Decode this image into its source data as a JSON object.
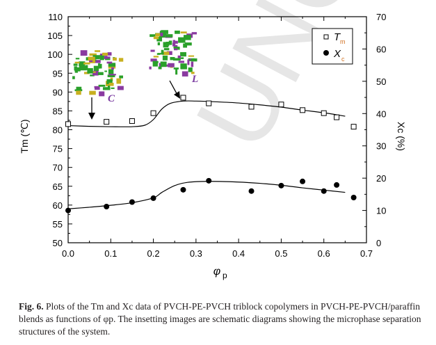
{
  "chart_data": {
    "type": "scatter",
    "xlabel": "φp",
    "ylabel_left": "Tm (℃)",
    "ylabel_right": "Xc (%)",
    "xlim": [
      0.0,
      0.7
    ],
    "ylim_left": [
      50,
      110
    ],
    "ylim_right": [
      0,
      70
    ],
    "xticks": [
      "0.0",
      "0.1",
      "0.2",
      "0.3",
      "0.4",
      "0.5",
      "0.6",
      "0.7"
    ],
    "yticks_left": [
      "50",
      "55",
      "60",
      "65",
      "70",
      "75",
      "80",
      "85",
      "90",
      "95",
      "100",
      "105",
      "110"
    ],
    "yticks_right": [
      "0",
      "10",
      "20",
      "30",
      "40",
      "50",
      "60",
      "70"
    ],
    "grid": false,
    "legend_placement": "top-right",
    "series": [
      {
        "name": "Tm",
        "axis": "left",
        "marker": "open-square",
        "x": [
          0.0,
          0.09,
          0.15,
          0.2,
          0.27,
          0.33,
          0.43,
          0.5,
          0.55,
          0.6,
          0.63,
          0.67
        ],
        "y": [
          81.5,
          82.1,
          82.3,
          84.4,
          88.5,
          87.0,
          86.1,
          86.7,
          85.2,
          84.4,
          83.3,
          80.8
        ],
        "fit_x": [
          0.0,
          0.05,
          0.1,
          0.15,
          0.18,
          0.2,
          0.22,
          0.24,
          0.27,
          0.3,
          0.35,
          0.4,
          0.45,
          0.5,
          0.55,
          0.6,
          0.65
        ],
        "fit_y": [
          81.1,
          80.9,
          80.8,
          80.8,
          81.2,
          82.7,
          85.5,
          87.0,
          87.6,
          87.6,
          87.4,
          87.1,
          86.6,
          86.0,
          85.2,
          84.5,
          83.6
        ]
      },
      {
        "name": "Xc",
        "axis": "right",
        "marker": "filled-circle",
        "x": [
          0.0,
          0.09,
          0.15,
          0.2,
          0.27,
          0.33,
          0.43,
          0.5,
          0.55,
          0.6,
          0.63,
          0.67
        ],
        "y": [
          10.0,
          11.2,
          12.6,
          13.8,
          16.4,
          19.2,
          16.0,
          17.7,
          19.0,
          16.0,
          17.9,
          14.0
        ],
        "fit_x": [
          0.0,
          0.05,
          0.1,
          0.15,
          0.2,
          0.22,
          0.25,
          0.28,
          0.33,
          0.4,
          0.45,
          0.5,
          0.55,
          0.6,
          0.65
        ],
        "fit_y": [
          10.5,
          11.0,
          11.6,
          12.4,
          13.9,
          15.6,
          17.7,
          18.7,
          19.0,
          18.8,
          18.4,
          17.8,
          17.0,
          16.3,
          15.6
        ]
      }
    ],
    "annotations": [
      "C",
      "L"
    ],
    "watermark": "UNCO"
  },
  "legend": {
    "tm_main": "T",
    "tm_sub": "m",
    "xc_main": "X",
    "xc_sub": "c"
  },
  "caption": {
    "label": "Fig. 6.",
    "text": "Plots of the Tm and Xc data of PVCH-PE-PVCH triblock copolymers in PVCH-PE-PVCH/paraffin blends as functions of φp. The insetting images are schematic diagrams showing the microphase separation structures of the system."
  },
  "colors": {
    "accent": "#d07020",
    "inset_green": "#2aa02a",
    "inset_yellow": "#c8b020",
    "inset_purple": "#8a3aa0"
  }
}
